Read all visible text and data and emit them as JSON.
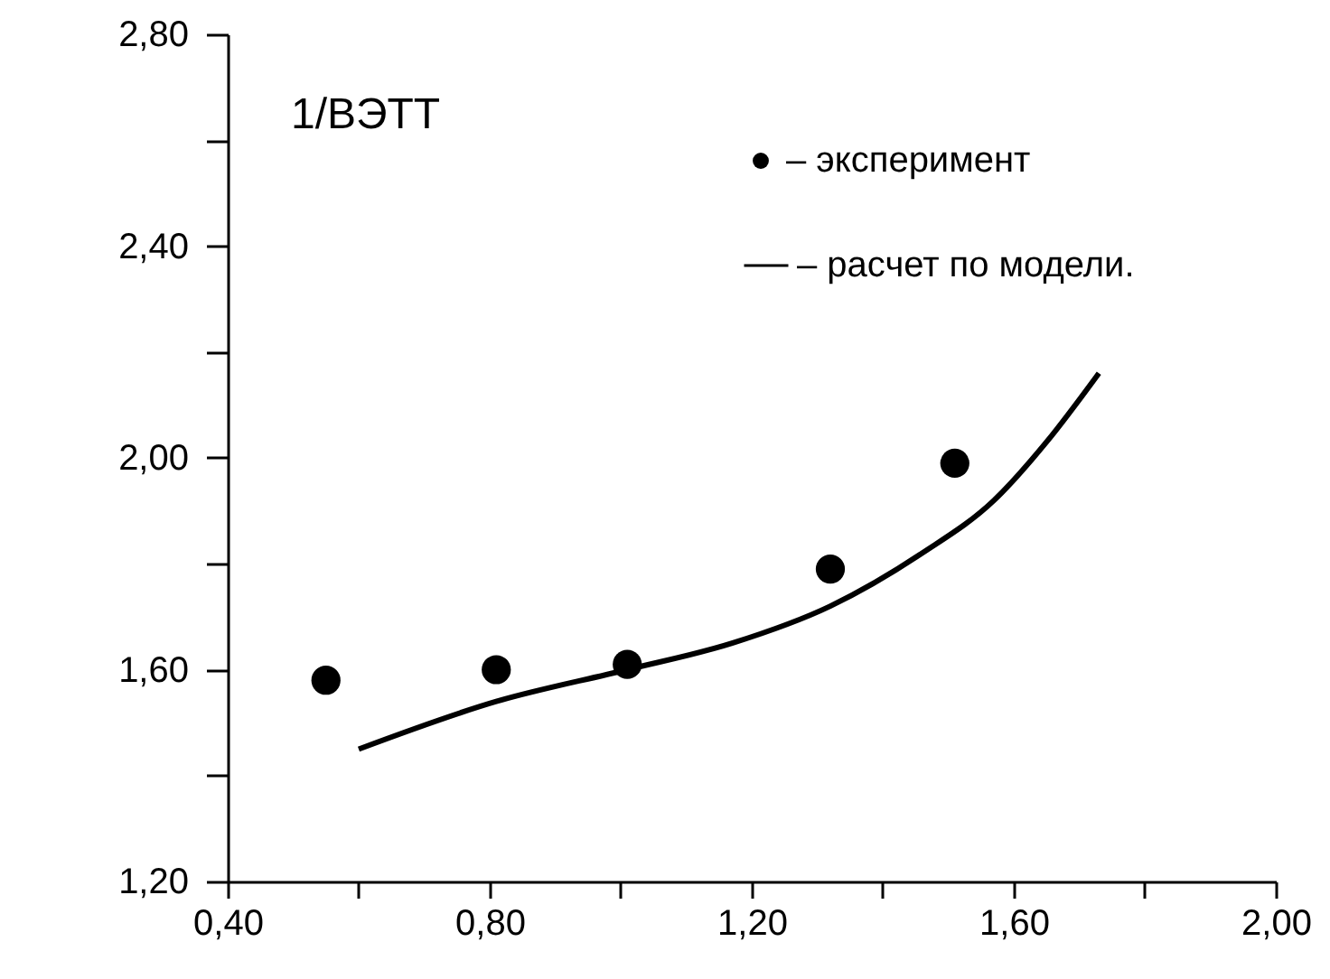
{
  "chart_data": {
    "type": "scatter",
    "ylabel": "1/ВЭТТ",
    "legend": "top right",
    "xlim": [
      0.4,
      2.0
    ],
    "ylim": [
      1.2,
      2.8
    ],
    "xticks": [
      {
        "value": 0.4,
        "label": "0,40"
      },
      {
        "value": 0.6,
        "label": null
      },
      {
        "value": 0.8,
        "label": "0,80"
      },
      {
        "value": 1.0,
        "label": null
      },
      {
        "value": 1.2,
        "label": "1,20"
      },
      {
        "value": 1.4,
        "label": null
      },
      {
        "value": 1.6,
        "label": "1,60"
      },
      {
        "value": 1.8,
        "label": null
      },
      {
        "value": 2.0,
        "label": "2,00"
      }
    ],
    "yticks": [
      {
        "value": 1.2,
        "label": "1,20"
      },
      {
        "value": 1.4,
        "label": null
      },
      {
        "value": 1.6,
        "label": "1,60"
      },
      {
        "value": 1.8,
        "label": null
      },
      {
        "value": 2.0,
        "label": "2,00"
      },
      {
        "value": 2.2,
        "label": null
      },
      {
        "value": 2.4,
        "label": "2,40"
      },
      {
        "value": 2.6,
        "label": null
      },
      {
        "value": 2.8,
        "label": "2,80"
      }
    ],
    "series": [
      {
        "name": "– эксперимент",
        "color": "#000000",
        "marker": "circle",
        "x": [
          0.55,
          0.81,
          1.01,
          1.32,
          1.51
        ],
        "values": [
          1.58,
          1.6,
          1.61,
          1.79,
          1.99
        ]
      },
      {
        "name": "– расчет по модели.",
        "type": "line",
        "color": "#000000",
        "x": [
          0.6,
          0.81,
          1.01,
          1.17,
          1.32,
          1.46,
          1.57,
          1.65,
          1.73
        ],
        "values": [
          1.45,
          1.54,
          1.6,
          1.65,
          1.72,
          1.82,
          1.92,
          2.03,
          2.16
        ]
      }
    ]
  }
}
